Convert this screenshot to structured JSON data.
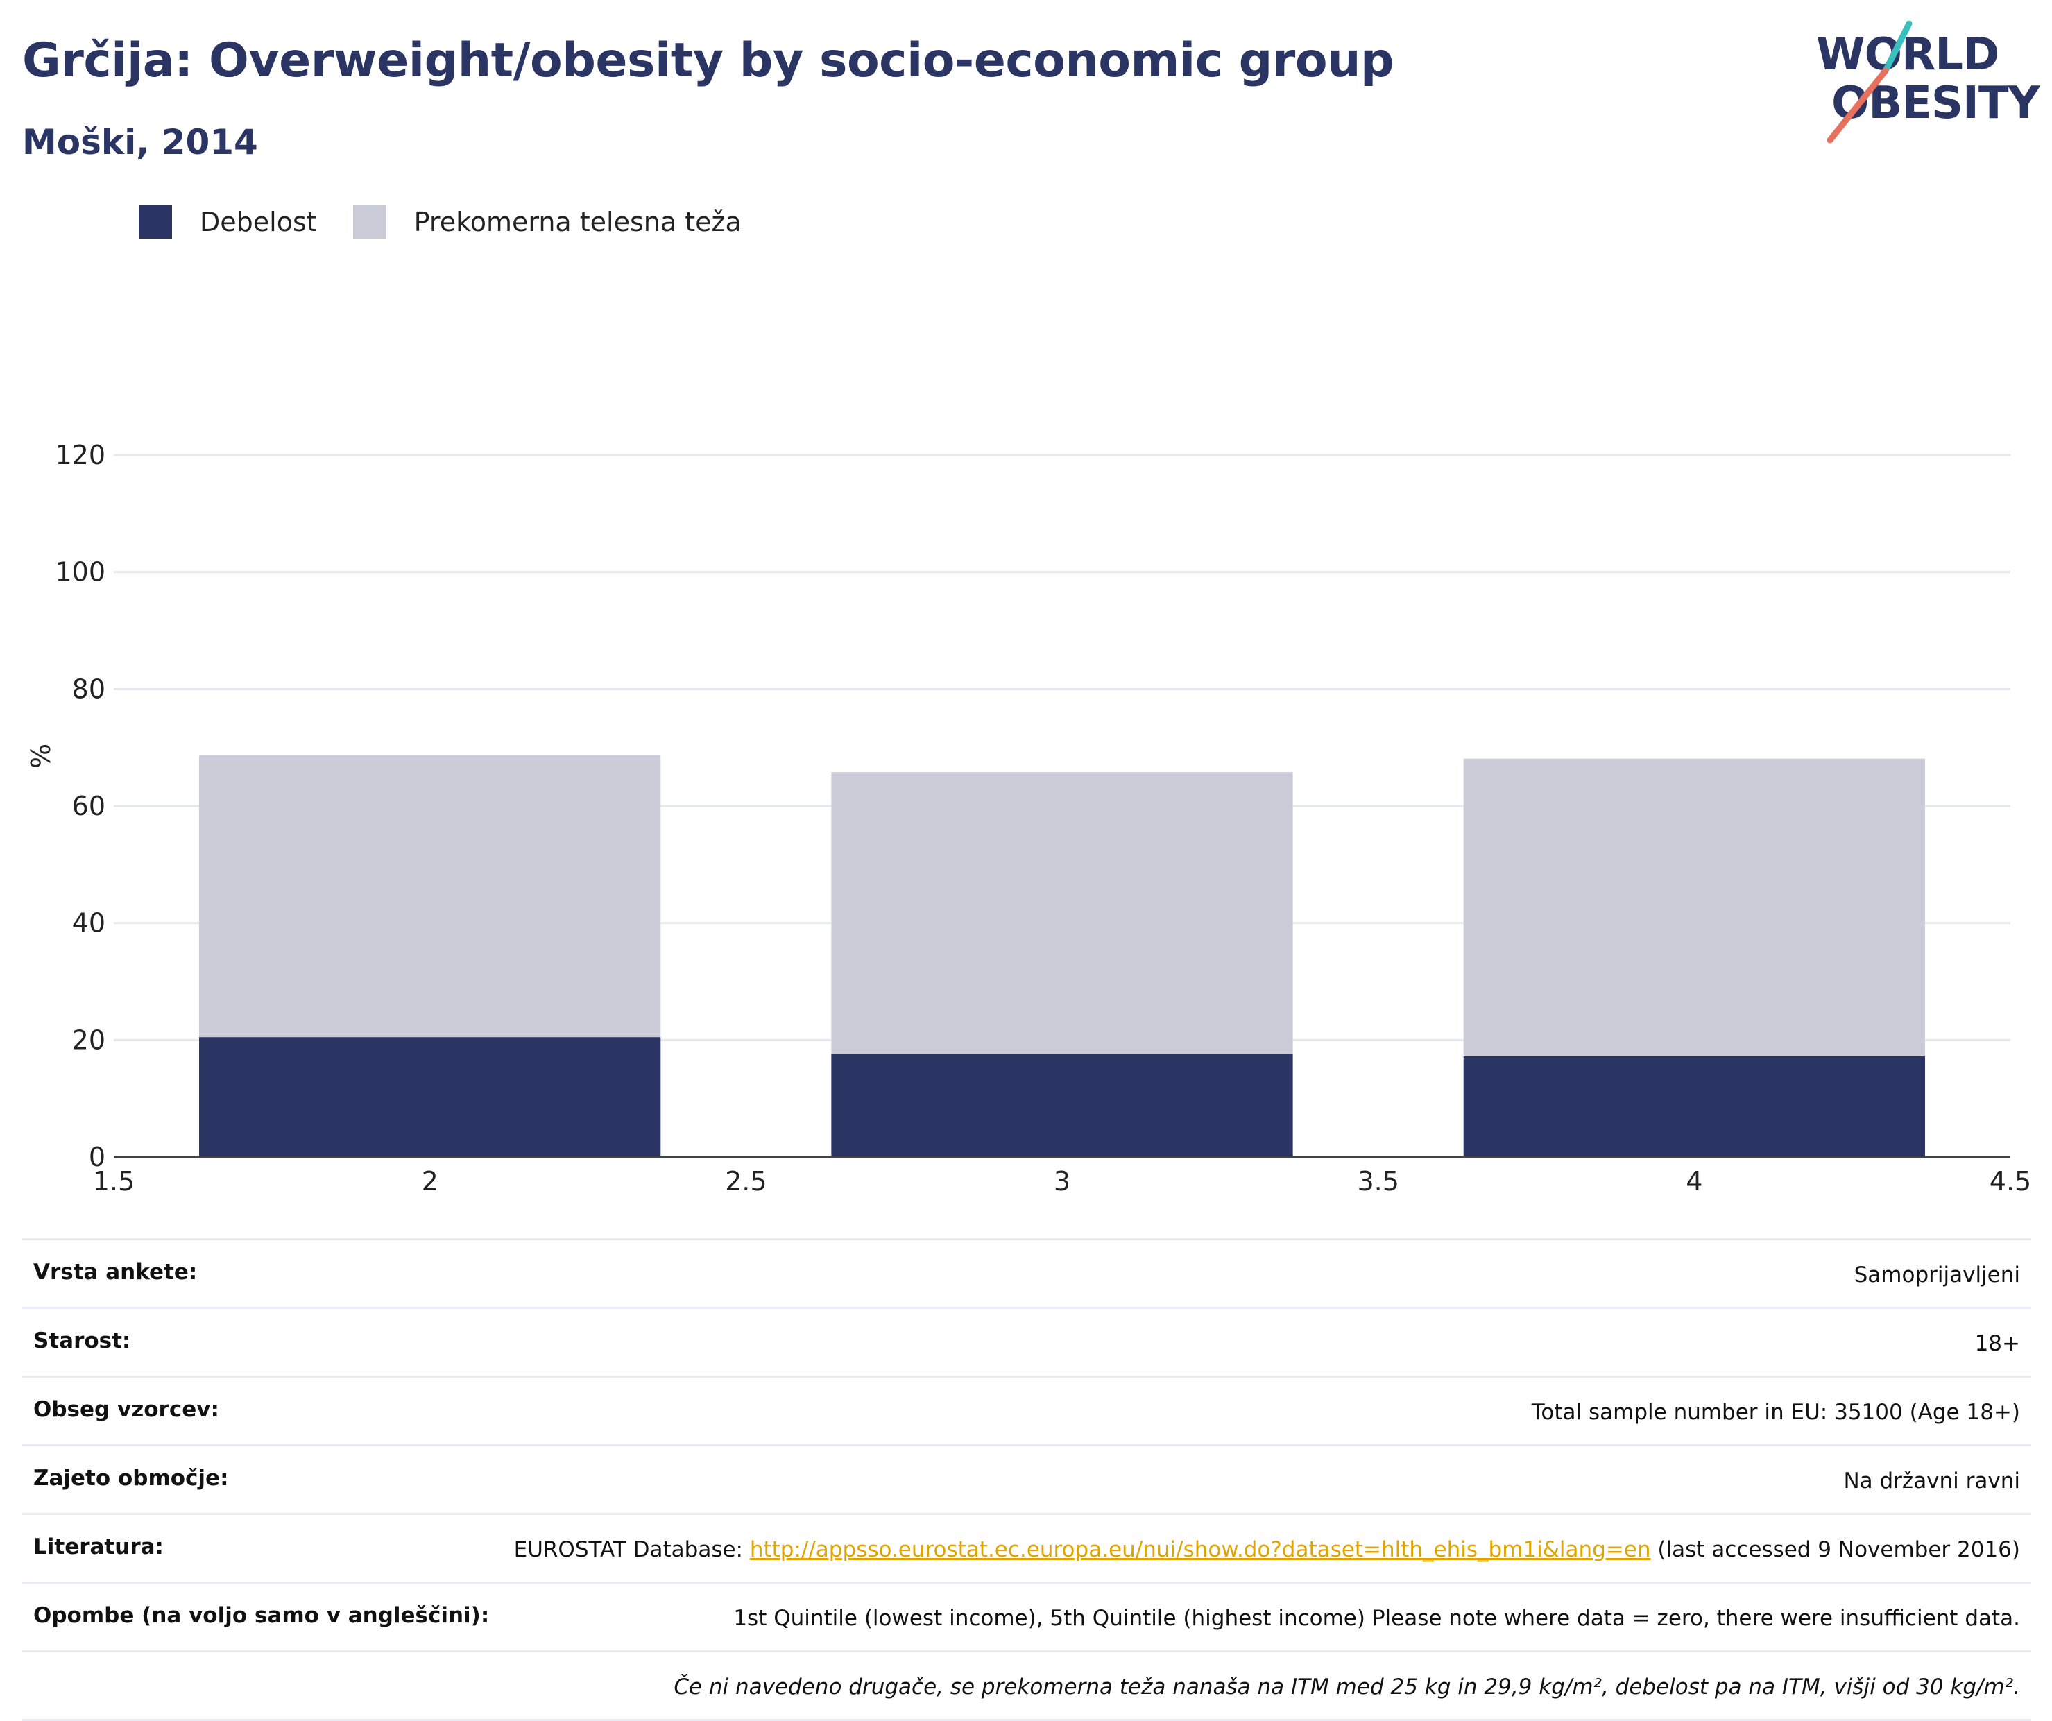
{
  "header": {
    "title": "Grčija: Overweight/obesity by socio-economic group",
    "subtitle": "Moški, 2014"
  },
  "logo": {
    "line1": "WORLD",
    "line2": "OBESITY"
  },
  "legend": [
    {
      "label": "Debelost",
      "color": "#2b3564"
    },
    {
      "label": "Prekomerna telesna teža",
      "color": "#caccd7"
    }
  ],
  "chart_data": {
    "type": "bar",
    "stacked": true,
    "x": [
      2,
      3,
      4
    ],
    "bar_width": 0.73,
    "series": [
      {
        "name": "Debelost",
        "color": "#2b3564",
        "values": [
          20.5,
          17.6,
          17.2
        ]
      },
      {
        "name": "Prekomerna telesna teža",
        "color": "#caccd7",
        "values": [
          48.2,
          48.2,
          50.9
        ]
      }
    ],
    "xlim": [
      1.5,
      4.5
    ],
    "xticks": [
      "1.5",
      "2",
      "2.5",
      "3",
      "3.5",
      "4",
      "4.5"
    ],
    "xtick_values": [
      1.5,
      2,
      2.5,
      3,
      3.5,
      4,
      4.5
    ],
    "ylim": [
      0,
      120
    ],
    "yticks": [
      0,
      20,
      40,
      60,
      80,
      100,
      120
    ],
    "ylabel": "%",
    "grid": true
  },
  "info": {
    "survey_type": {
      "key": "Vrsta ankete:",
      "value": "Samoprijavljeni"
    },
    "age": {
      "key": "Starost:",
      "value": "18+"
    },
    "sample": {
      "key": "Obseg vzorcev:",
      "value": "Total sample number in EU: 35100 (Age 18+)"
    },
    "area": {
      "key": "Zajeto območje:",
      "value": "Na državni ravni"
    },
    "literature": {
      "key": "Literatura:",
      "prefix": "EUROSTAT Database: ",
      "link": "http://appsso.eurostat.ec.europa.eu/nui/show.do?dataset=hlth_ehis_bm1i&lang=en",
      "suffix": " (last accessed 9 November 2016)"
    },
    "notes": {
      "key": "Opombe (na voljo samo v angleščini):",
      "value": "1st Quintile (lowest income), 5th Quintile (highest income) Please note where data = zero, there were insufficient data."
    },
    "definition": "Če ni navedeno drugače, se prekomerna teža nanaša na ITM med 25 kg in 29,9 kg/m², debelost pa na ITM, višji od 30 kg/m²."
  }
}
